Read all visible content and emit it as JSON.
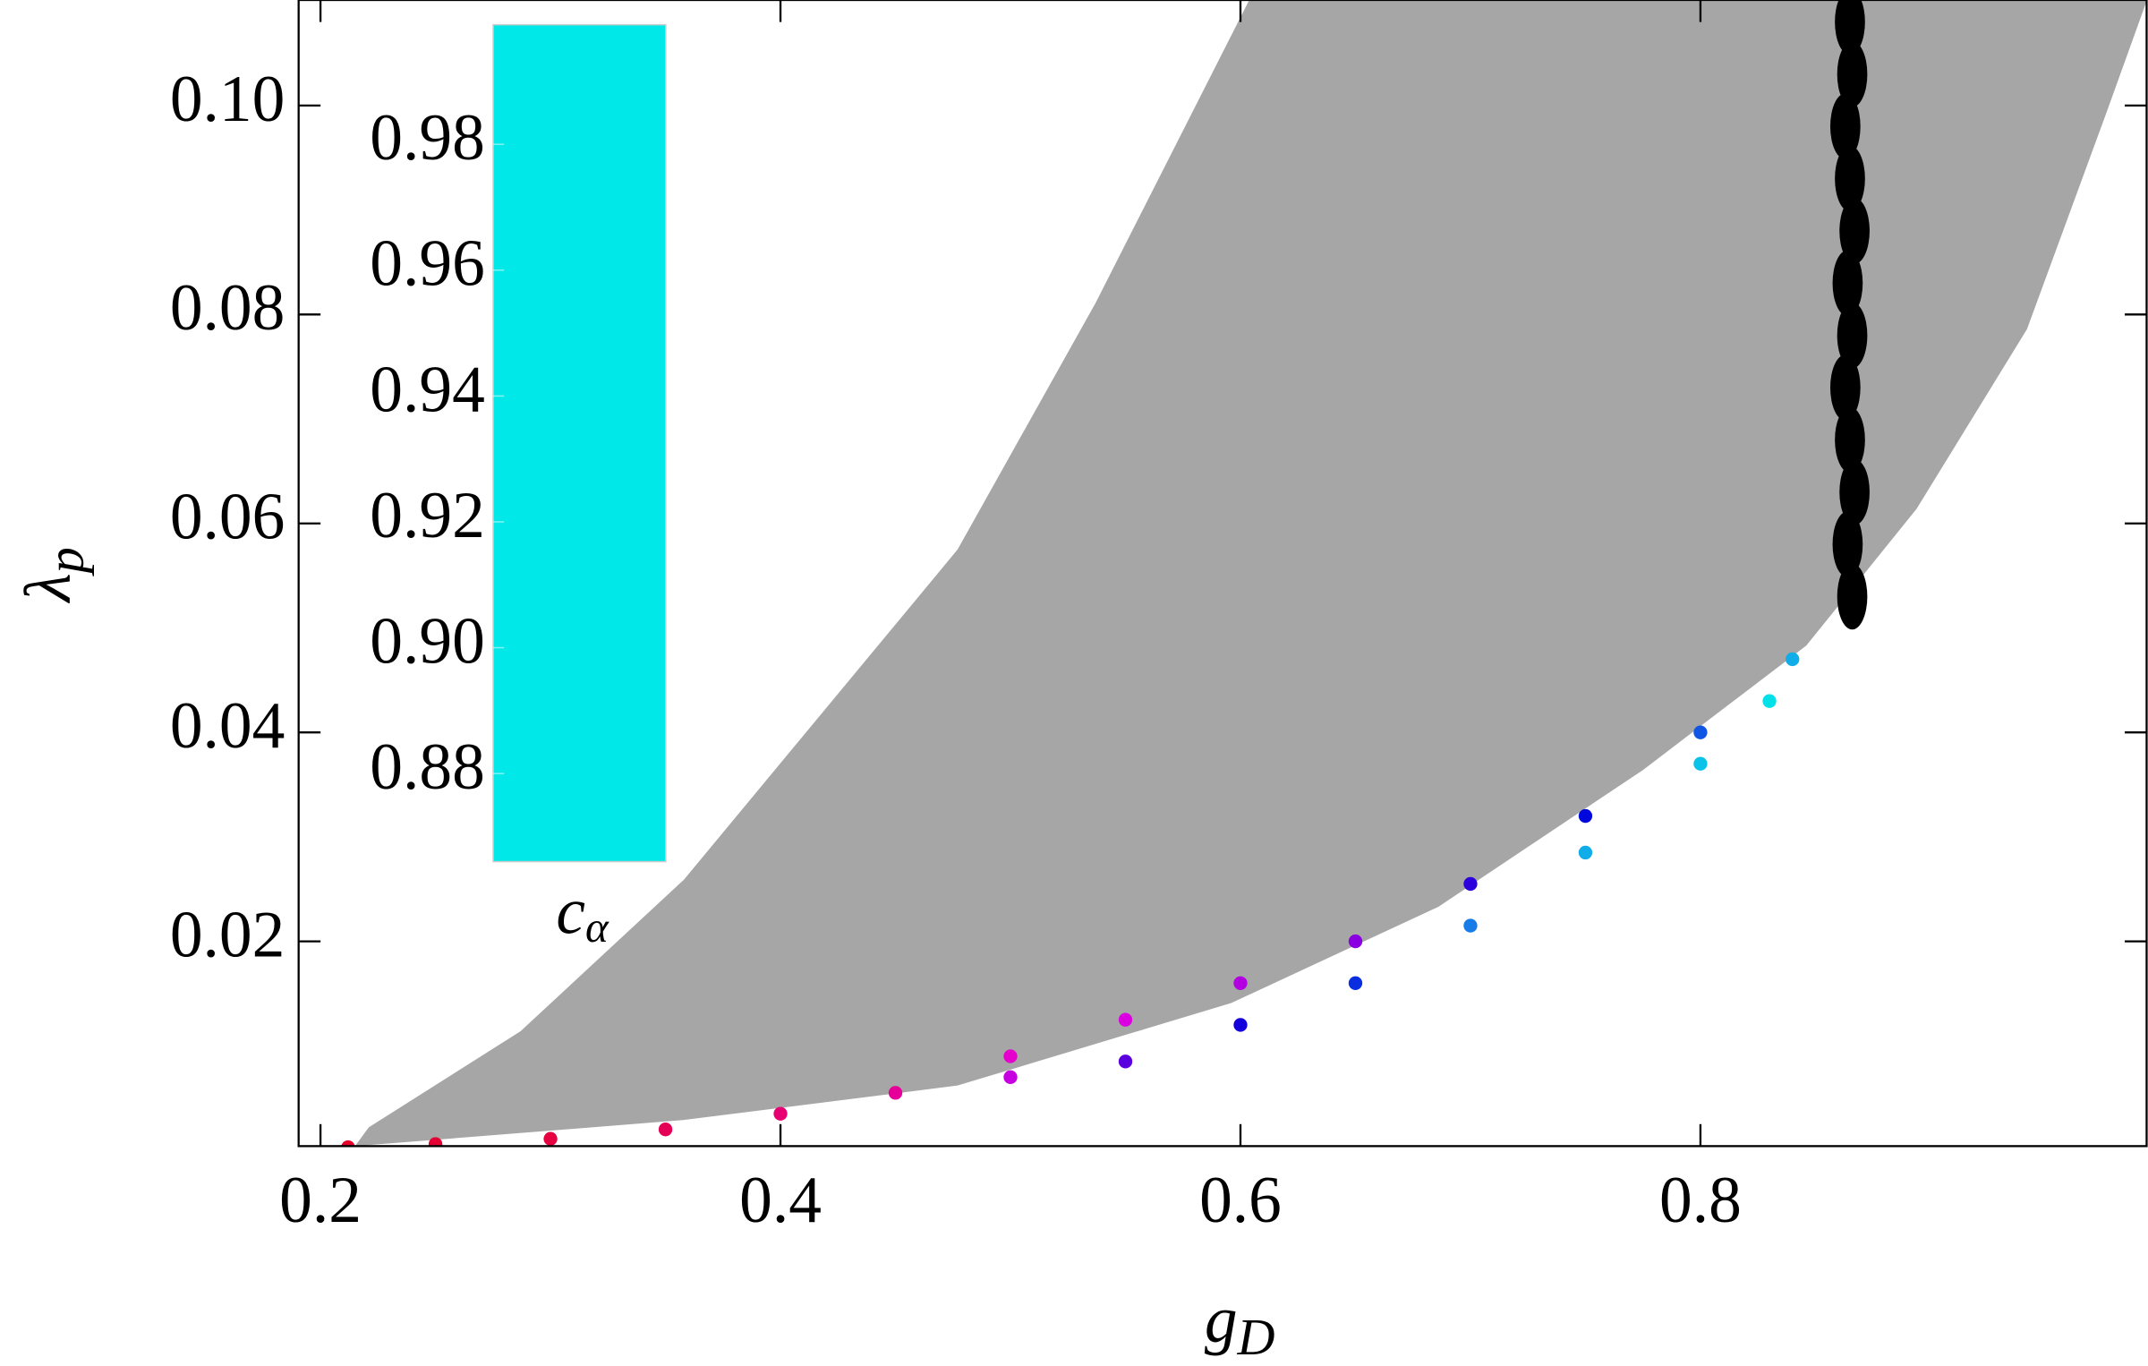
{
  "chart_data": {
    "type": "scatter",
    "xlabel": "g",
    "xlabel_sub": "D",
    "ylabel": "λ",
    "ylabel_sub": "p",
    "xlim": [
      0.1905,
      0.994
    ],
    "ylim": [
      0.0004,
      0.1101
    ],
    "xticks": [
      0.2,
      0.4,
      0.6,
      0.8
    ],
    "yticks": [
      0.02,
      0.04,
      0.06,
      0.08,
      {
        "value": 0.1,
        "label": "0.10"
      }
    ],
    "region": {
      "color": "#a6a6a6",
      "x": [
        0.215,
        0.221,
        0.287,
        0.358,
        0.477,
        0.537,
        0.6036,
        0.994,
        0.977,
        0.942,
        0.894,
        0.846,
        0.775,
        0.686,
        0.596,
        0.477,
        0.358
      ],
      "y": [
        0.0004,
        0.0022,
        0.0114,
        0.0259,
        0.0575,
        0.0811,
        0.11,
        0.11,
        0.0996,
        0.0786,
        0.0614,
        0.0483,
        0.0364,
        0.0233,
        0.0141,
        0.0062,
        0.0029
      ]
    },
    "colored": {
      "x": [
        0.212,
        0.25,
        0.3,
        0.35,
        0.4,
        0.45,
        0.5,
        0.5,
        0.55,
        0.55,
        0.6,
        0.6,
        0.65,
        0.65,
        0.7,
        0.7,
        0.75,
        0.75,
        0.8,
        0.8,
        0.84,
        0.83
      ],
      "y": [
        0.0003,
        0.0006,
        0.0011,
        0.002,
        0.0035,
        0.0055,
        0.009,
        0.007,
        0.0125,
        0.0085,
        0.016,
        0.012,
        0.02,
        0.016,
        0.0255,
        0.0215,
        0.032,
        0.0285,
        0.04,
        0.037,
        0.047,
        0.043
      ],
      "c": [
        0.995,
        0.993,
        0.99,
        0.986,
        0.98,
        0.972,
        0.962,
        0.95,
        0.955,
        0.925,
        0.945,
        0.91,
        0.935,
        0.9,
        0.915,
        0.89,
        0.905,
        0.88,
        0.895,
        0.875,
        0.88,
        0.868
      ]
    },
    "black": {
      "color": "#000000",
      "x": [
        0.866,
        0.864,
        0.867,
        0.865,
        0.863,
        0.866,
        0.864,
        0.867,
        0.865,
        0.863,
        0.866,
        0.865
      ],
      "y": [
        0.053,
        0.058,
        0.063,
        0.068,
        0.073,
        0.078,
        0.083,
        0.088,
        0.093,
        0.098,
        0.103,
        0.108
      ]
    },
    "colorbar": {
      "label": "c",
      "label_sub": "α",
      "clim": [
        0.866,
        0.999
      ],
      "ticks": [
        0.88,
        {
          "value": 0.9,
          "label": "0.90"
        },
        0.92,
        0.94,
        0.96,
        0.98
      ],
      "colormap": [
        {
          "value": 0.866,
          "color": "#00e8e8"
        },
        {
          "value": 0.888,
          "color": "#1a8be8"
        },
        {
          "value": 0.906,
          "color": "#0000dc"
        },
        {
          "value": 0.935,
          "color": "#8a00e0"
        },
        {
          "value": 0.958,
          "color": "#e600e0"
        },
        {
          "value": 0.978,
          "color": "#e6007a"
        },
        {
          "value": 0.999,
          "color": "#e40018"
        }
      ]
    }
  }
}
